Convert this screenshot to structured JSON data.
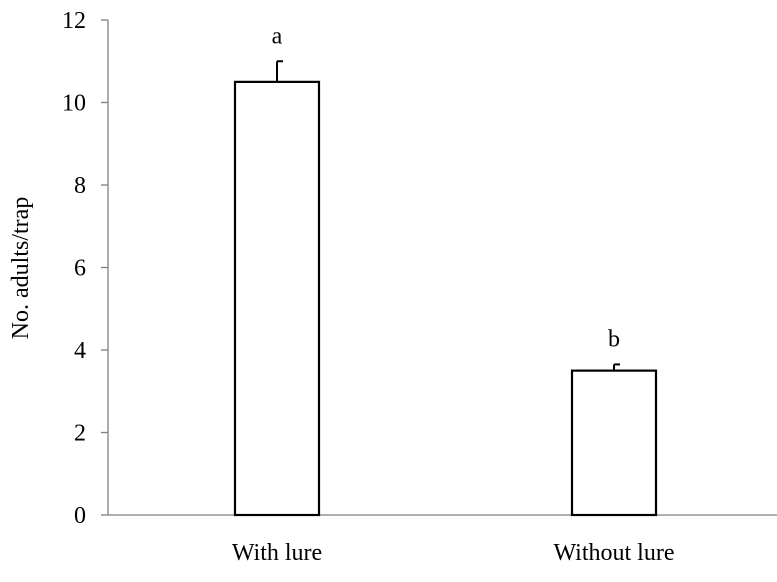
{
  "chart_data": {
    "type": "bar",
    "categories": [
      "With lure",
      "Without lure"
    ],
    "values": [
      10.5,
      3.5
    ],
    "error_bars": [
      0.5,
      0.15
    ],
    "significance_letters": [
      "a",
      "b"
    ],
    "title": "",
    "xlabel": "",
    "ylabel": "No. adults/trap",
    "ylim": [
      0,
      12
    ],
    "yticks": [
      "0",
      "2",
      "4",
      "6",
      "8",
      "10",
      "12"
    ],
    "grid": false,
    "legend": "none",
    "bar_fill": "#ffffff",
    "bar_stroke": "#000000",
    "axis_color": "#7f7f7f"
  }
}
